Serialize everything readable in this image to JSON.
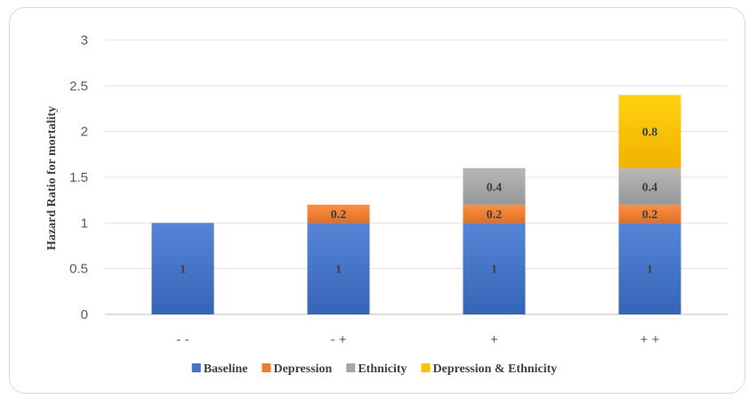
{
  "chart_data": {
    "type": "bar",
    "stacked": true,
    "title": "",
    "xlabel": "",
    "ylabel": "Hazard Ratio for mortality",
    "ylim": [
      0,
      3
    ],
    "yticks": [
      "0",
      "0.5",
      "1",
      "1.5",
      "2",
      "2.5",
      "3"
    ],
    "categories": [
      "- -",
      "- +",
      "+",
      "+ +"
    ],
    "series": [
      {
        "name": "Baseline",
        "color": "#4472c4",
        "values": [
          1,
          1,
          1,
          1
        ],
        "labels": [
          "1",
          "1",
          "1",
          "1"
        ]
      },
      {
        "name": "Depression",
        "color": "#ed7d31",
        "values": [
          0,
          0.2,
          0.2,
          0.2
        ],
        "labels": [
          "",
          "0.2",
          "0.2",
          "0.2"
        ]
      },
      {
        "name": "Ethnicity",
        "color": "#a5a5a5",
        "values": [
          0,
          0,
          0.4,
          0.4
        ],
        "labels": [
          "",
          "",
          "0.4",
          "0.4"
        ]
      },
      {
        "name": "Depression & Ethnicity",
        "color": "#ffc000",
        "values": [
          0,
          0,
          0,
          0.8
        ],
        "labels": [
          "",
          "",
          "",
          "0.8"
        ]
      }
    ],
    "grid": true,
    "legend_position": "bottom"
  }
}
